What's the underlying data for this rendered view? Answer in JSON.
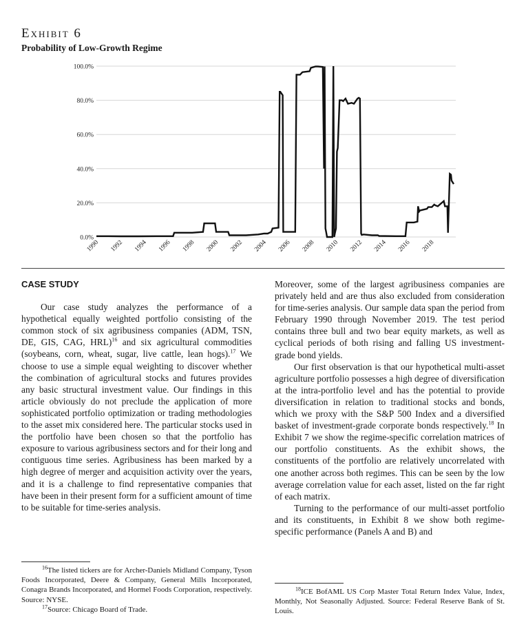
{
  "exhibit": {
    "label": "Exhibit 6",
    "title": "Probability of Low-Growth Regime"
  },
  "chart_data": {
    "type": "line",
    "title": "Probability of Low-Growth Regime",
    "xlabel": "",
    "ylabel": "",
    "xlim": [
      1990,
      2020
    ],
    "ylim": [
      0,
      100
    ],
    "y_ticks": [
      "0.0%",
      "20.0%",
      "40.0%",
      "60.0%",
      "80.0%",
      "100.0%"
    ],
    "x_ticks": [
      "1990",
      "1992",
      "1994",
      "1996",
      "1998",
      "2000",
      "2002",
      "2004",
      "2006",
      "2008",
      "2010",
      "2012",
      "2014",
      "2016",
      "2018"
    ],
    "grid": true,
    "color": "#111111",
    "series": [
      {
        "x": [
          1990.0,
          1991.0,
          1992.0,
          1993.5,
          1995.0,
          1996.4,
          1996.5,
          1998.0,
          1998.9,
          1999.0,
          1999.9,
          2000.0,
          2001.0,
          2001.1,
          2002.5,
          2003.5,
          2004.0,
          2004.3,
          2004.6,
          2004.7,
          2005.2,
          2005.3,
          2005.35,
          2005.55,
          2005.6,
          2006.6,
          2006.7,
          2007.0,
          2007.2,
          2007.8,
          2007.9,
          2008.3,
          2008.5,
          2008.9,
          2009.0,
          2009.05,
          2009.12,
          2009.18,
          2009.25,
          2009.35,
          2009.45,
          2009.55,
          2009.7,
          2009.78,
          2009.85,
          2009.92,
          2010.0,
          2010.08,
          2010.15,
          2010.3,
          2010.5,
          2010.6,
          2010.8,
          2011.0,
          2011.3,
          2011.5,
          2011.8,
          2011.9,
          2012.0,
          2012.1,
          2012.15,
          2012.3,
          2013.0,
          2013.5,
          2013.6,
          2015.0,
          2015.8,
          2015.9,
          2016.5,
          2016.8,
          2016.85,
          2016.95,
          2017.0,
          2017.3,
          2017.6,
          2017.7,
          2018.0,
          2018.2,
          2018.3,
          2018.5,
          2019.0,
          2019.1,
          2019.2,
          2019.3,
          2019.35,
          2019.5,
          2019.6,
          2019.65,
          2019.83
        ],
        "y": [
          0.5,
          0.5,
          0.4,
          0.4,
          0.5,
          0.5,
          2.5,
          2.5,
          3.0,
          8.0,
          8.0,
          3.0,
          3.0,
          1.0,
          1.0,
          1.5,
          2.0,
          2.0,
          3.0,
          5.0,
          5.5,
          85,
          85,
          83,
          3.0,
          3.0,
          95,
          95,
          96.5,
          97,
          99,
          99.8,
          99.8,
          99.5,
          40,
          99.8,
          5,
          3,
          0,
          0,
          0,
          0,
          0,
          100,
          0,
          2.5,
          5,
          50,
          52,
          80,
          80,
          79.5,
          81,
          78,
          78.5,
          78,
          81,
          81.5,
          81,
          2,
          1.2,
          1.5,
          1.0,
          1.0,
          0.6,
          0.5,
          0.5,
          8.5,
          8.5,
          9.0,
          18,
          15,
          15.5,
          16,
          16.5,
          17.5,
          17.5,
          19,
          18.5,
          18,
          21,
          18,
          18,
          18,
          2.5,
          37,
          36.5,
          33,
          31
        ]
      }
    ]
  },
  "section": {
    "heading": "CASE STUDY"
  },
  "left_paragraph": {
    "part1": "Our case study analyzes the performance of a hypothetical equally weighted portfolio consisting of the common stock of six agribusiness companies (ADM, TSN, DE, GIS, CAG, HRL)",
    "ref16": "16",
    "part2": " and six agricultural commodities (soybeans, corn, wheat, sugar, live cattle, lean hogs).",
    "ref17": "17",
    "part3": " We choose to use a simple equal weighting to discover whether the combination of agricultural stocks and futures provides any basic structural investment value. Our findings in this article obviously do not preclude the application of more sophisticated portfolio optimization or trading methodologies to the asset mix considered here. The particular stocks used in the portfolio have been chosen so that the portfolio has exposure to various agribusiness sectors and for their long and contiguous time series. Agribusiness has been marked by a high degree of merger and acquisition activity over the years, and it is a challenge to find representative companies that have been in their present form for a sufficient amount of time to be suitable for time-series analysis."
  },
  "right_paragraphs": {
    "p1": "Moreover, some of the largest agribusiness companies are privately held and are thus also excluded from consideration for time-series analysis. Our sample data span the period from February 1990 through November 2019. The test period contains three bull and two bear equity markets, as well as cyclical periods of both rising and falling US investment-grade bond yields.",
    "p2_part1": "Our first observation is that our hypothetical multi-asset agriculture portfolio possesses a high degree of diversification at the intra-portfolio level and has the potential to provide diversification in relation to traditional stocks and bonds, which we proxy with the S&P 500 Index and a diversified basket of investment-grade corporate bonds respectively.",
    "ref18": "18",
    "p2_part2": " In Exhibit 7 we show the regime-specific correlation matrices of our portfolio constituents. As the exhibit shows, the constituents of the portfolio are relatively uncorrelated with one another across both regimes. This can be seen by the low average correlation value for each asset, listed on the far right of each matrix.",
    "p3": "Turning to the performance of our multi-asset portfolio and its constituents, in Exhibit 8 we show both regime-specific performance (Panels A and B) and"
  },
  "footnotes": {
    "fn16_num": "16",
    "fn16_text": "The listed tickers are for Archer-Daniels Midland Company, Tyson Foods Incorporated, Deere & Company, General Mills Incorporated, Conagra Brands Incorporated, and Hormel Foods Corporation, respectively. Source: NYSE.",
    "fn17_num": "17",
    "fn17_text": "Source: Chicago Board of Trade.",
    "fn18_num": "18",
    "fn18_text": "ICE BofAML US Corp Master Total Return Index Value, Index, Monthly, Not Seasonally Adjusted. Source: Federal Reserve Bank of St. Louis."
  }
}
